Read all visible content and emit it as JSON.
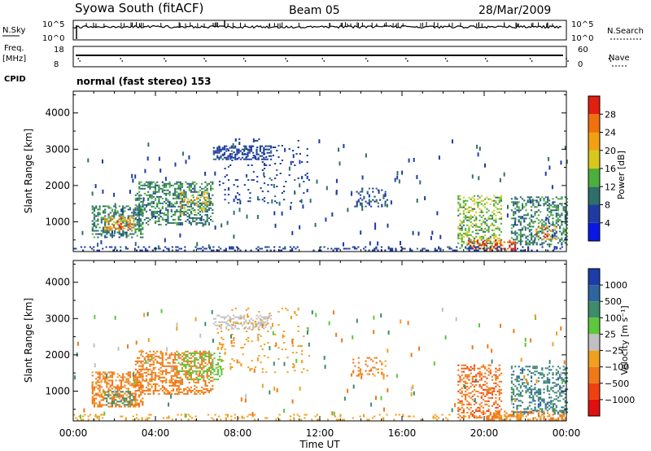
{
  "header": {
    "station": "Syowa South (fitACF)",
    "beam": "Beam 05",
    "date": "28/Mar/2009"
  },
  "top_panels": {
    "nsky_label": "N.Sky",
    "nsky_ticks": [
      "10^5",
      "10^0"
    ],
    "nsearch_label": "N.Search",
    "nsearch_ticks": [
      "10^5",
      "10^0"
    ],
    "freq_label_1": "Freq.",
    "freq_label_2": "[MHz]",
    "freq_ticks": [
      "18",
      "8"
    ],
    "nave_label": "Nave",
    "nave_ticks": [
      "60",
      "0"
    ],
    "cpid_label": "CPID",
    "cpid_value": "normal (fast stereo) 153"
  },
  "colors": {
    "power_scale": [
      "#0a18e6",
      "#1e3ca0",
      "#2f6f6a",
      "#4caf3c",
      "#d8c81c",
      "#f2a010",
      "#f07010",
      "#e02010"
    ],
    "velocity_scale": [
      "#1c3ca8",
      "#2f64a0",
      "#3e8c6a",
      "#5cc83c",
      "#c0c0c0",
      "#f0a020",
      "#f07818",
      "#f04010",
      "#e01010"
    ]
  },
  "chart_data": [
    {
      "type": "heatmap",
      "name": "power-panel",
      "xlabel": "",
      "ylabel": "Slant Range [km]",
      "x_ticks": [
        "00:00",
        "04:00",
        "08:00",
        "12:00",
        "16:00",
        "20:00",
        "00:00"
      ],
      "x_range_hours": [
        0,
        24
      ],
      "y_ticks": [
        1000,
        2000,
        3000,
        4000
      ],
      "ylim": [
        180,
        4600
      ],
      "colorbar_label": "Power [dB]",
      "colorbar_ticks": [
        "4",
        "8",
        "12",
        "16",
        "20",
        "24",
        "28"
      ],
      "colorbar_range": [
        0,
        30
      ],
      "patches": [
        {
          "t": [
            0.9,
            3.4
          ],
          "r": [
            550,
            1450
          ],
          "value": 10,
          "density": 0.45
        },
        {
          "t": [
            1.5,
            2.9
          ],
          "r": [
            750,
            1150
          ],
          "value": 22,
          "density": 0.35
        },
        {
          "t": [
            3.0,
            6.8
          ],
          "r": [
            900,
            2100
          ],
          "value": 10,
          "density": 0.4
        },
        {
          "t": [
            5.2,
            6.6
          ],
          "r": [
            1200,
            1800
          ],
          "value": 17,
          "density": 0.3
        },
        {
          "t": [
            6.8,
            9.6
          ],
          "r": [
            2700,
            3100
          ],
          "value": 6,
          "density": 0.5
        },
        {
          "t": [
            7.0,
            11.5
          ],
          "r": [
            1500,
            3300
          ],
          "value": 6,
          "density": 0.06
        },
        {
          "t": [
            13.5,
            15.3
          ],
          "r": [
            1400,
            1900
          ],
          "value": 7,
          "density": 0.25
        },
        {
          "t": [
            18.7,
            20.8
          ],
          "r": [
            250,
            1700
          ],
          "value": 14,
          "density": 0.35
        },
        {
          "t": [
            19.2,
            21.5
          ],
          "r": [
            190,
            500
          ],
          "value": 28,
          "density": 0.45
        },
        {
          "t": [
            21.3,
            24.0
          ],
          "r": [
            350,
            1700
          ],
          "value": 10,
          "density": 0.4
        },
        {
          "t": [
            22.5,
            23.5
          ],
          "r": [
            500,
            900
          ],
          "value": 24,
          "density": 0.25
        },
        {
          "t": [
            0.0,
            24.0
          ],
          "r": [
            190,
            320
          ],
          "value": 6,
          "density": 0.25
        }
      ]
    },
    {
      "type": "heatmap",
      "name": "velocity-panel",
      "xlabel": "Time UT",
      "ylabel": "Slant Range [km]",
      "x_ticks": [
        "00:00",
        "04:00",
        "08:00",
        "12:00",
        "16:00",
        "20:00",
        "00:00"
      ],
      "x_range_hours": [
        0,
        24
      ],
      "y_ticks": [
        1000,
        2000,
        3000,
        4000
      ],
      "ylim": [
        180,
        4600
      ],
      "colorbar_label": "Velocity [m s⁻¹]",
      "colorbar_ticks": [
        "1000",
        "500",
        "100",
        "25",
        "−25",
        "−100",
        "−500",
        "−1000"
      ],
      "patches": [
        {
          "t": [
            0.9,
            3.4
          ],
          "r": [
            550,
            1500
          ],
          "value": -150,
          "density": 0.45
        },
        {
          "t": [
            1.5,
            2.9
          ],
          "r": [
            600,
            1000
          ],
          "value": 300,
          "density": 0.3
        },
        {
          "t": [
            3.0,
            6.8
          ],
          "r": [
            900,
            2100
          ],
          "value": -200,
          "density": 0.4
        },
        {
          "t": [
            5.0,
            7.2
          ],
          "r": [
            1300,
            2100
          ],
          "value": 60,
          "density": 0.3
        },
        {
          "t": [
            6.8,
            9.6
          ],
          "r": [
            2700,
            3100
          ],
          "value": 10,
          "density": 0.45
        },
        {
          "t": [
            7.0,
            11.5
          ],
          "r": [
            1500,
            3300
          ],
          "value": -60,
          "density": 0.05
        },
        {
          "t": [
            13.5,
            15.3
          ],
          "r": [
            1400,
            1900
          ],
          "value": -150,
          "density": 0.2
        },
        {
          "t": [
            18.7,
            20.8
          ],
          "r": [
            250,
            1700
          ],
          "value": -400,
          "density": 0.35
        },
        {
          "t": [
            20.0,
            24.0
          ],
          "r": [
            190,
            450
          ],
          "value": -200,
          "density": 0.4
        },
        {
          "t": [
            21.3,
            24.0
          ],
          "r": [
            350,
            1700
          ],
          "value": 400,
          "density": 0.35
        },
        {
          "t": [
            0.0,
            24.0
          ],
          "r": [
            190,
            330
          ],
          "value": -60,
          "density": 0.15
        }
      ]
    }
  ]
}
